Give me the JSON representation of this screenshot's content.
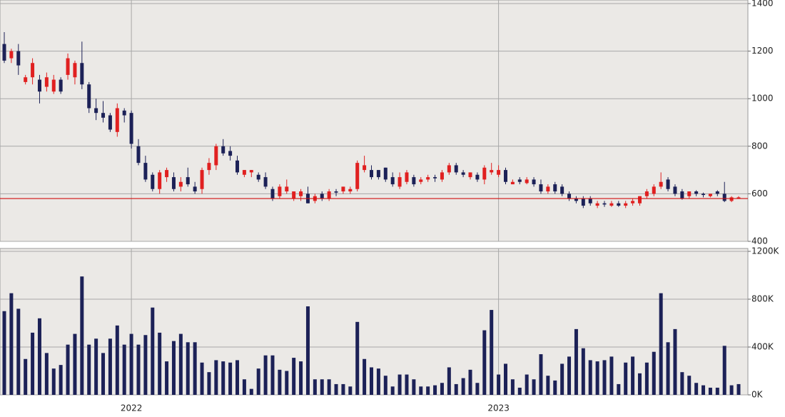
{
  "chart_data": [
    {
      "type": "candlestick",
      "up_color": "#e02020",
      "down_color": "#1c2157",
      "open": [
        1230,
        1170,
        1200,
        1070,
        1090,
        1080,
        1050,
        1030,
        1080,
        1100,
        1090,
        1150,
        1060,
        960,
        940,
        930,
        860,
        950,
        940,
        800,
        730,
        680,
        620,
        670,
        670,
        630,
        670,
        630,
        620,
        700,
        720,
        800,
        780,
        740,
        680,
        690,
        680,
        670,
        620,
        590,
        610,
        580,
        590,
        600,
        570,
        600,
        580,
        610,
        610,
        610,
        620,
        700,
        700,
        700,
        710,
        670,
        630,
        650,
        670,
        650,
        660,
        670,
        660,
        690,
        720,
        690,
        670,
        680,
        660,
        690,
        680,
        700,
        640,
        660,
        645,
        660,
        640,
        610,
        640,
        630,
        600,
        580,
        580,
        580,
        550,
        560,
        550,
        560,
        550,
        560,
        560,
        590,
        600,
        630,
        660,
        630,
        610,
        590,
        610,
        600,
        590,
        610,
        600,
        570,
        580
      ],
      "high": [
        1280,
        1210,
        1230,
        1100,
        1170,
        1100,
        1110,
        1100,
        1090,
        1190,
        1160,
        1240,
        1070,
        1000,
        990,
        940,
        980,
        960,
        950,
        830,
        760,
        690,
        700,
        710,
        690,
        670,
        710,
        650,
        710,
        750,
        810,
        830,
        800,
        760,
        700,
        700,
        690,
        690,
        630,
        640,
        660,
        610,
        620,
        630,
        600,
        610,
        620,
        620,
        630,
        630,
        740,
        760,
        720,
        700,
        710,
        690,
        690,
        700,
        680,
        670,
        680,
        680,
        700,
        730,
        730,
        700,
        690,
        690,
        720,
        730,
        720,
        710,
        660,
        670,
        670,
        670,
        660,
        640,
        650,
        640,
        610,
        590,
        590,
        590,
        570,
        570,
        570,
        570,
        570,
        580,
        590,
        620,
        640,
        690,
        670,
        640,
        620,
        610,
        615,
        605,
        600,
        615,
        650,
        590,
        590
      ],
      "low": [
        1150,
        1150,
        1100,
        1060,
        1060,
        980,
        1030,
        1020,
        1020,
        1080,
        1060,
        1040,
        940,
        910,
        900,
        860,
        840,
        900,
        790,
        720,
        650,
        610,
        600,
        650,
        610,
        610,
        630,
        600,
        600,
        680,
        700,
        760,
        740,
        680,
        670,
        670,
        650,
        620,
        570,
        580,
        600,
        570,
        570,
        560,
        560,
        570,
        570,
        590,
        600,
        600,
        610,
        690,
        660,
        660,
        650,
        630,
        620,
        640,
        630,
        640,
        650,
        650,
        650,
        680,
        680,
        670,
        660,
        650,
        640,
        680,
        670,
        640,
        640,
        640,
        640,
        630,
        600,
        600,
        600,
        590,
        570,
        560,
        540,
        550,
        540,
        545,
        545,
        545,
        540,
        550,
        550,
        580,
        590,
        620,
        610,
        590,
        575,
        580,
        590,
        585,
        585,
        590,
        565,
        565,
        580
      ],
      "close": [
        1160,
        1200,
        1140,
        1090,
        1150,
        1030,
        1090,
        1080,
        1030,
        1170,
        1150,
        1060,
        960,
        940,
        920,
        870,
        960,
        930,
        810,
        730,
        660,
        620,
        690,
        700,
        620,
        650,
        640,
        610,
        700,
        730,
        800,
        770,
        760,
        690,
        700,
        700,
        660,
        630,
        580,
        630,
        630,
        610,
        610,
        560,
        590,
        580,
        610,
        605,
        630,
        620,
        730,
        720,
        670,
        670,
        660,
        640,
        670,
        690,
        640,
        660,
        670,
        665,
        690,
        720,
        690,
        680,
        690,
        660,
        710,
        700,
        700,
        650,
        650,
        650,
        660,
        640,
        610,
        630,
        610,
        600,
        580,
        570,
        550,
        560,
        560,
        555,
        560,
        550,
        560,
        570,
        590,
        610,
        630,
        650,
        620,
        600,
        580,
        610,
        600,
        595,
        600,
        600,
        570,
        585,
        585
      ],
      "reference_line": {
        "value": 580,
        "color": "#d01010"
      },
      "ylim": [
        400,
        1400
      ],
      "yticks": [
        400,
        600,
        800,
        1000,
        1200,
        1400
      ],
      "grid": true
    },
    {
      "type": "bar",
      "color": "#1c2157",
      "categories": [
        null,
        null,
        null,
        null,
        null,
        null,
        null,
        null,
        null,
        null,
        null,
        null,
        null,
        null,
        null,
        null,
        null,
        null,
        "2022",
        null,
        null,
        null,
        null,
        null,
        null,
        null,
        null,
        null,
        null,
        null,
        null,
        null,
        null,
        null,
        null,
        null,
        null,
        null,
        null,
        null,
        null,
        null,
        null,
        null,
        null,
        null,
        null,
        null,
        null,
        null,
        null,
        null,
        null,
        null,
        null,
        null,
        null,
        null,
        null,
        null,
        null,
        null,
        null,
        null,
        null,
        null,
        null,
        null,
        null,
        null,
        "2023",
        null,
        null,
        null,
        null,
        null,
        null,
        null,
        null,
        null,
        null,
        null,
        null,
        null,
        null,
        null,
        null,
        null,
        null,
        null,
        null,
        null,
        null,
        null,
        null,
        null,
        null,
        null,
        null,
        null,
        null,
        null,
        null,
        null,
        null
      ],
      "values": [
        700000,
        850000,
        720000,
        300000,
        520000,
        640000,
        350000,
        220000,
        250000,
        420000,
        510000,
        990000,
        420000,
        470000,
        350000,
        470000,
        580000,
        420000,
        510000,
        420000,
        500000,
        730000,
        520000,
        280000,
        450000,
        510000,
        440000,
        440000,
        270000,
        190000,
        290000,
        280000,
        270000,
        290000,
        130000,
        50000,
        220000,
        330000,
        330000,
        210000,
        200000,
        310000,
        280000,
        740000,
        130000,
        130000,
        130000,
        90000,
        90000,
        70000,
        610000,
        300000,
        230000,
        220000,
        160000,
        70000,
        170000,
        170000,
        130000,
        70000,
        70000,
        80000,
        100000,
        230000,
        90000,
        140000,
        210000,
        100000,
        540000,
        710000,
        170000,
        260000,
        130000,
        60000,
        170000,
        130000,
        340000,
        160000,
        120000,
        260000,
        320000,
        550000,
        390000,
        290000,
        280000,
        290000,
        320000,
        90000,
        270000,
        320000,
        180000,
        270000,
        360000,
        850000,
        440000,
        550000,
        190000,
        160000,
        100000,
        80000,
        60000,
        60000,
        410000,
        80000,
        90000
      ],
      "ylim": [
        0,
        1200000
      ],
      "yticks": [
        {
          "value": 0,
          "label": "0K"
        },
        {
          "value": 400000,
          "label": "400K"
        },
        {
          "value": 800000,
          "label": "800K"
        },
        {
          "value": 1200000,
          "label": "1200K"
        }
      ],
      "grid": true
    }
  ]
}
